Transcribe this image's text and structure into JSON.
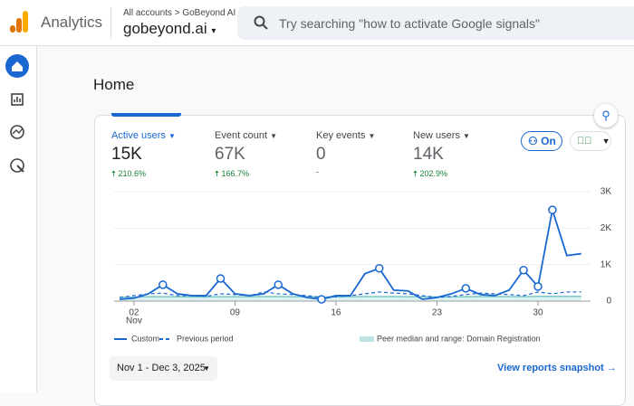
{
  "header": {
    "app": "Analytics",
    "breadcrumb": "All accounts > GoBeyond AI",
    "property": "gobeyond.ai",
    "search_placeholder": "Try searching \"how to activate Google signals\""
  },
  "page_title": "Home",
  "metrics": [
    {
      "label": "Active users",
      "value": "15K",
      "change": "210.6%"
    },
    {
      "label": "Event count",
      "value": "67K",
      "change": "166.7%"
    },
    {
      "label": "Key events",
      "value": "0",
      "change": "-"
    },
    {
      "label": "New users",
      "value": "14K",
      "change": "202.9%"
    }
  ],
  "badge": "On",
  "chart_data": {
    "type": "line",
    "categories": [
      null,
      "02",
      null,
      null,
      null,
      null,
      null,
      null,
      "09",
      null,
      null,
      null,
      null,
      null,
      null,
      "16",
      null,
      null,
      null,
      null,
      null,
      null,
      "23",
      null,
      null,
      null,
      null,
      null,
      null,
      "30",
      null,
      null,
      null
    ],
    "month_label": "Nov",
    "ylim": [
      0,
      3000
    ],
    "yticks": [
      0,
      {
        "value": 1000,
        "label": "1K"
      },
      {
        "value": 2000,
        "label": "2K"
      },
      {
        "value": 3000,
        "label": "3K"
      }
    ],
    "series": [
      {
        "name": "Custom",
        "color": "#1a67d2",
        "style": "solid",
        "values": [
          50,
          80,
          200,
          450,
          200,
          150,
          150,
          620,
          200,
          150,
          200,
          450,
          200,
          100,
          50,
          150,
          150,
          750,
          900,
          300,
          280,
          50,
          100,
          200,
          350,
          180,
          150,
          300,
          850,
          400,
          2500,
          1250,
          1300
        ]
      },
      {
        "name": "Previous period",
        "color": "#1a67d2",
        "style": "dashed",
        "values": [
          100,
          150,
          200,
          220,
          150,
          150,
          130,
          200,
          180,
          150,
          250,
          200,
          180,
          150,
          100,
          120,
          150,
          200,
          250,
          220,
          200,
          150,
          100,
          130,
          180,
          220,
          200,
          180,
          150,
          250,
          200,
          250,
          250
        ]
      },
      {
        "name": "Peer median and range: Domain Registration",
        "color": "#7cc7c9",
        "style": "band",
        "values": [
          110,
          110,
          120,
          120,
          120,
          115,
          115,
          120,
          120,
          120,
          125,
          125,
          120,
          120,
          115,
          115,
          120,
          125,
          125,
          125,
          120,
          120,
          115,
          115,
          120,
          125,
          125,
          125,
          120,
          130,
          130,
          130,
          130
        ]
      }
    ]
  },
  "date_range": "Nov 1 - Dec 3, 2025",
  "link": "View reports snapshot"
}
